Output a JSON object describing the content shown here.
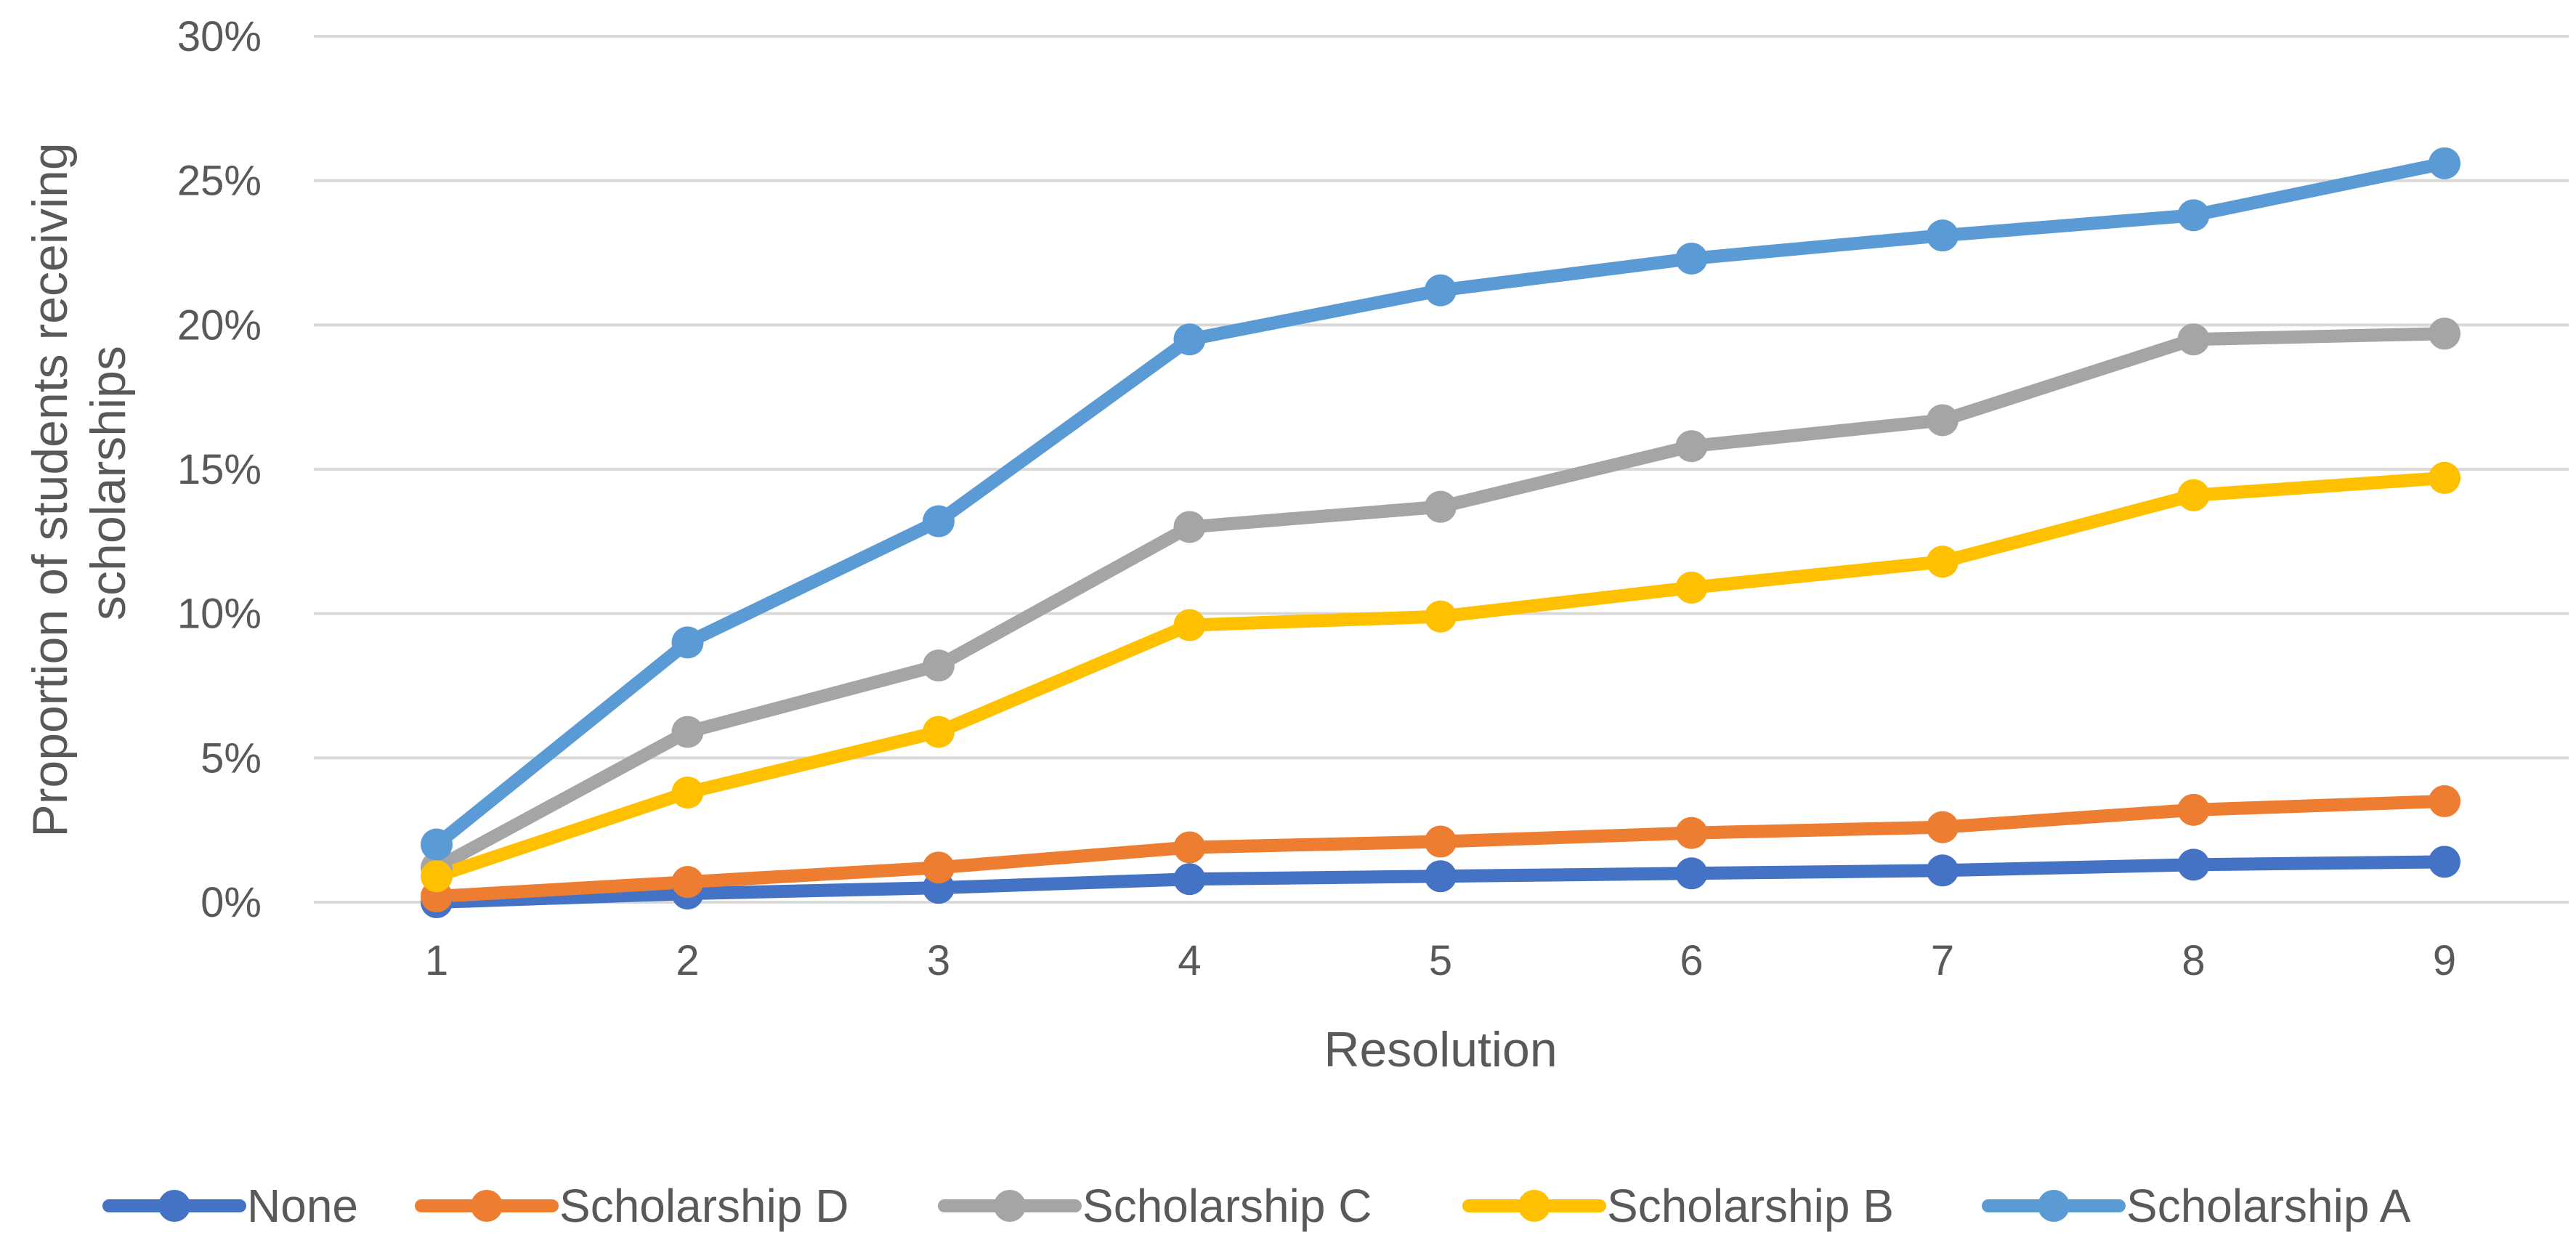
{
  "chart_data": {
    "type": "line",
    "title": "",
    "xlabel": "Resolution",
    "ylabel_lines": [
      "Proportion of students receiving",
      "scholarships"
    ],
    "x": [
      1,
      2,
      3,
      4,
      5,
      6,
      7,
      8,
      9
    ],
    "x_tick_labels": [
      "1",
      "2",
      "3",
      "4",
      "5",
      "6",
      "7",
      "8",
      "9"
    ],
    "ylim": [
      0,
      30
    ],
    "y_ticks": [
      0,
      5,
      10,
      15,
      20,
      25,
      30
    ],
    "y_tick_labels": [
      "0%",
      "5%",
      "10%",
      "15%",
      "20%",
      "25%",
      "30%"
    ],
    "grid": true,
    "legend_position": "bottom",
    "series": [
      {
        "name": "None",
        "color": "#4472C4",
        "values": [
          0.0,
          0.3,
          0.5,
          0.8,
          0.9,
          1.0,
          1.1,
          1.3,
          1.4
        ]
      },
      {
        "name": "Scholarship D",
        "color": "#ED7D31",
        "values": [
          0.2,
          0.7,
          1.2,
          1.9,
          2.1,
          2.4,
          2.6,
          3.2,
          3.5
        ]
      },
      {
        "name": "Scholarship C",
        "color": "#A5A5A5",
        "values": [
          1.2,
          5.9,
          8.2,
          13.0,
          13.7,
          15.8,
          16.7,
          19.5,
          19.7
        ]
      },
      {
        "name": "Scholarship B",
        "color": "#FFC000",
        "values": [
          0.9,
          3.8,
          5.9,
          9.6,
          9.9,
          10.9,
          11.8,
          14.1,
          14.7
        ]
      },
      {
        "name": "Scholarship A",
        "color": "#5B9BD5",
        "values": [
          2.0,
          9.0,
          13.2,
          19.5,
          21.2,
          22.3,
          23.1,
          23.8,
          25.6
        ]
      }
    ]
  }
}
